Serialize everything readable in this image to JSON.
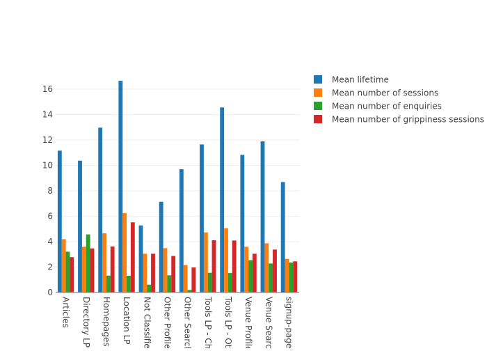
{
  "chart_data": {
    "type": "bar",
    "barmode": "group",
    "title": "",
    "xlabel": "",
    "ylabel": "",
    "ylim": [
      0,
      16.7
    ],
    "yticks": [
      0,
      2,
      4,
      6,
      8,
      10,
      12,
      14,
      16
    ],
    "grid": true,
    "legend_position": "top-right",
    "categories": [
      "Articles",
      "Directory LP",
      "Homepages",
      "Location LP",
      "Not Classified",
      "Other Profiles",
      "Other Search",
      "Tools LP - Ch",
      "Tools LP - Oth",
      "Venue Profile",
      "Venue Search",
      "signup-page"
    ],
    "series": [
      {
        "name": "Mean lifetime",
        "color": "#1f77b4",
        "values": [
          11.16,
          10.37,
          12.97,
          16.66,
          5.28,
          7.14,
          9.7,
          11.65,
          14.56,
          10.83,
          11.89,
          8.69
        ]
      },
      {
        "name": "Mean number of sessions",
        "color": "#ff7f0e",
        "values": [
          4.2,
          3.6,
          4.66,
          6.25,
          3.05,
          3.49,
          2.16,
          4.73,
          5.06,
          3.6,
          3.87,
          2.65
        ]
      },
      {
        "name": "Mean number of enquiries",
        "color": "#2ca02c",
        "values": [
          3.21,
          4.57,
          1.33,
          1.32,
          0.62,
          1.35,
          0.2,
          1.55,
          1.53,
          2.54,
          2.28,
          2.36
        ]
      },
      {
        "name": "Mean number of grippiness sessions",
        "color": "#d62728",
        "values": [
          2.78,
          3.47,
          3.62,
          5.52,
          3.05,
          2.87,
          1.97,
          4.11,
          4.09,
          3.05,
          3.38,
          2.45
        ]
      }
    ]
  }
}
